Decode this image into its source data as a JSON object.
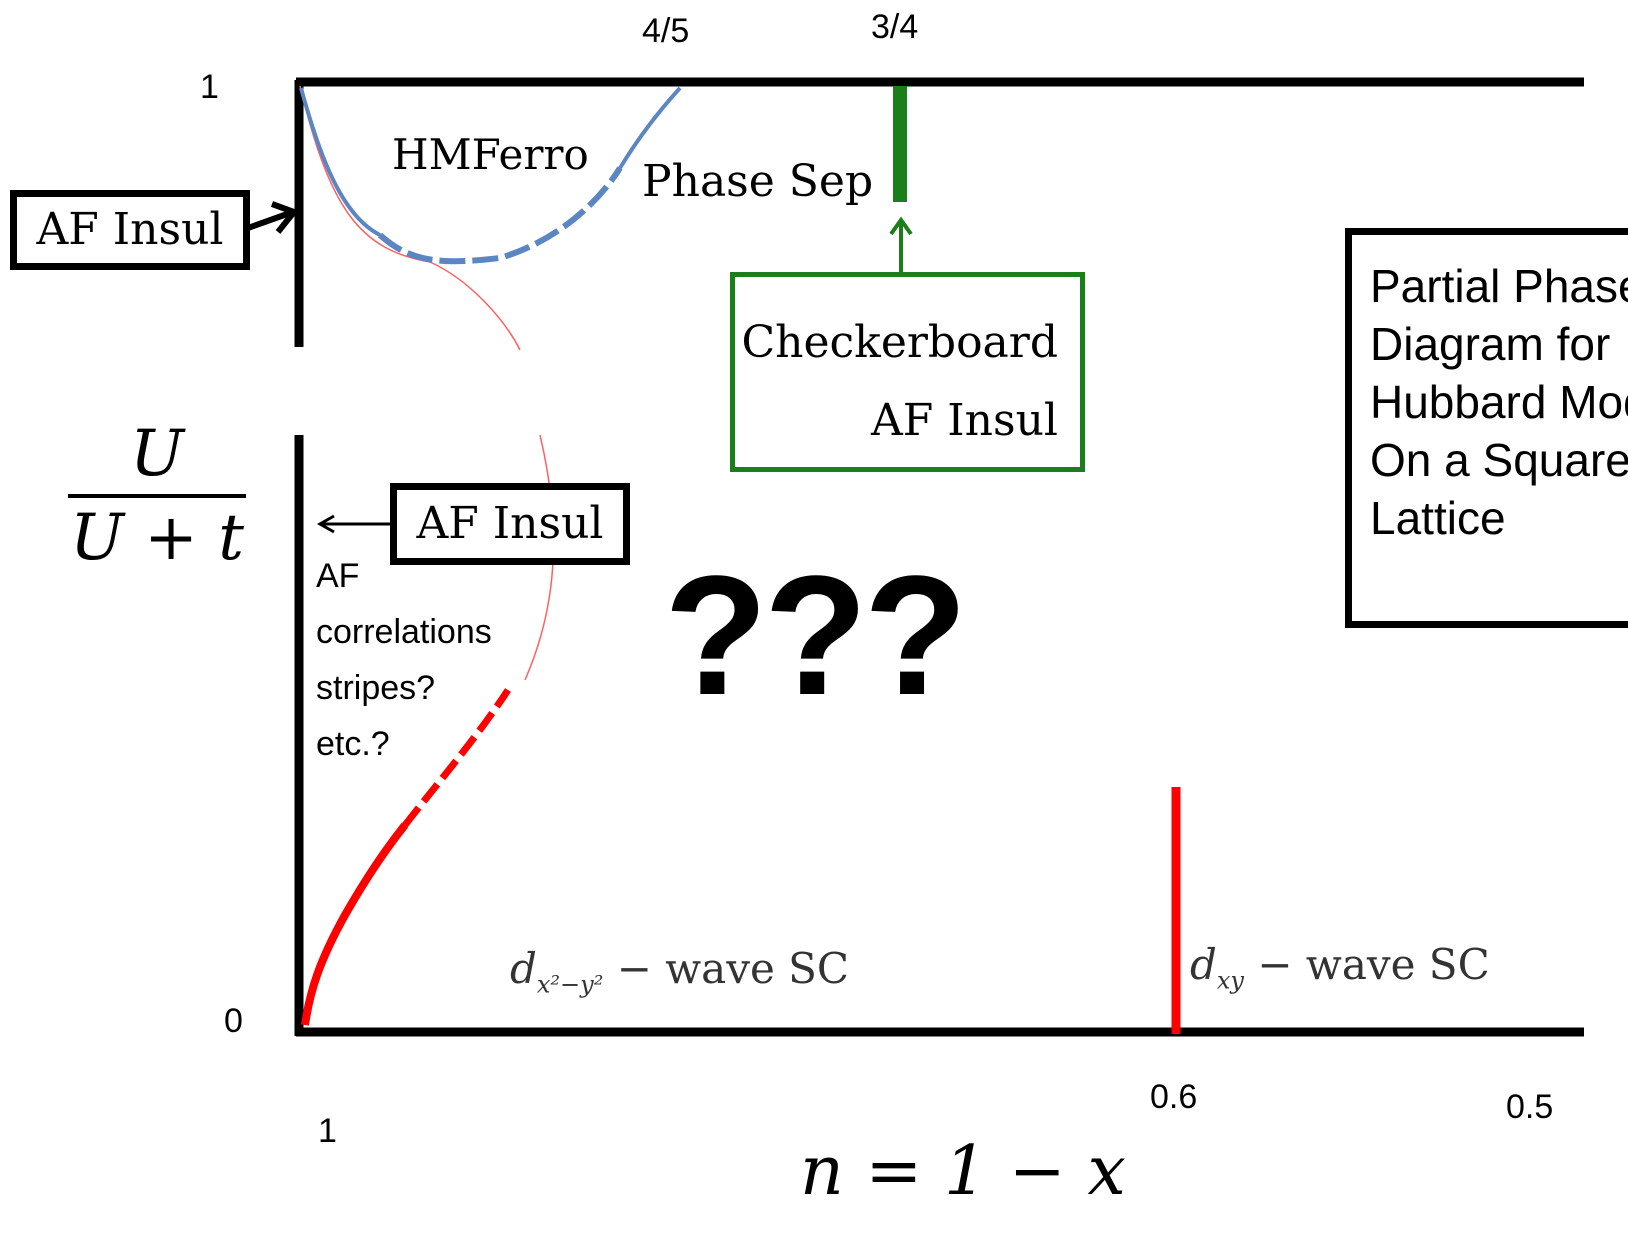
{
  "top_ticks": {
    "four_fifths": "4/5",
    "three_quarters": "3/4"
  },
  "y_ticks": {
    "top": "1",
    "bottom": "0"
  },
  "x_ticks": {
    "one": "1",
    "point6": "0.6",
    "half": "0.5"
  },
  "y_axis_label": {
    "numerator": "U",
    "denominator": "U + t"
  },
  "x_axis_label": "n = 1 − x",
  "regions": {
    "hm_ferro": "HMFerro",
    "phase_sep": "Phase Sep",
    "dx2y2": {
      "main": "d",
      "sub": "x²−y²",
      "rest": " − wave  SC"
    },
    "dxy": {
      "main": "d",
      "sub": "xy",
      "rest": " − wave SC"
    },
    "unknown": "???"
  },
  "annotations": {
    "af_insul_left": "AF Insul",
    "af_insul_mid": "AF Insul",
    "checkerboard_line1": "Checkerboard",
    "checkerboard_line2": "AF Insul",
    "af_corr": [
      "AF",
      "correlations",
      "stripes?",
      "etc.?"
    ]
  },
  "title_box": [
    "Partial Phase",
    "Diagram for",
    "Hubbard Model",
    "On a Square",
    "Lattice"
  ],
  "colors": {
    "frame": "#000000",
    "ferro": "#5b86c2",
    "sc_boundary": "#ff0000",
    "checker": "#1a7f1a"
  }
}
